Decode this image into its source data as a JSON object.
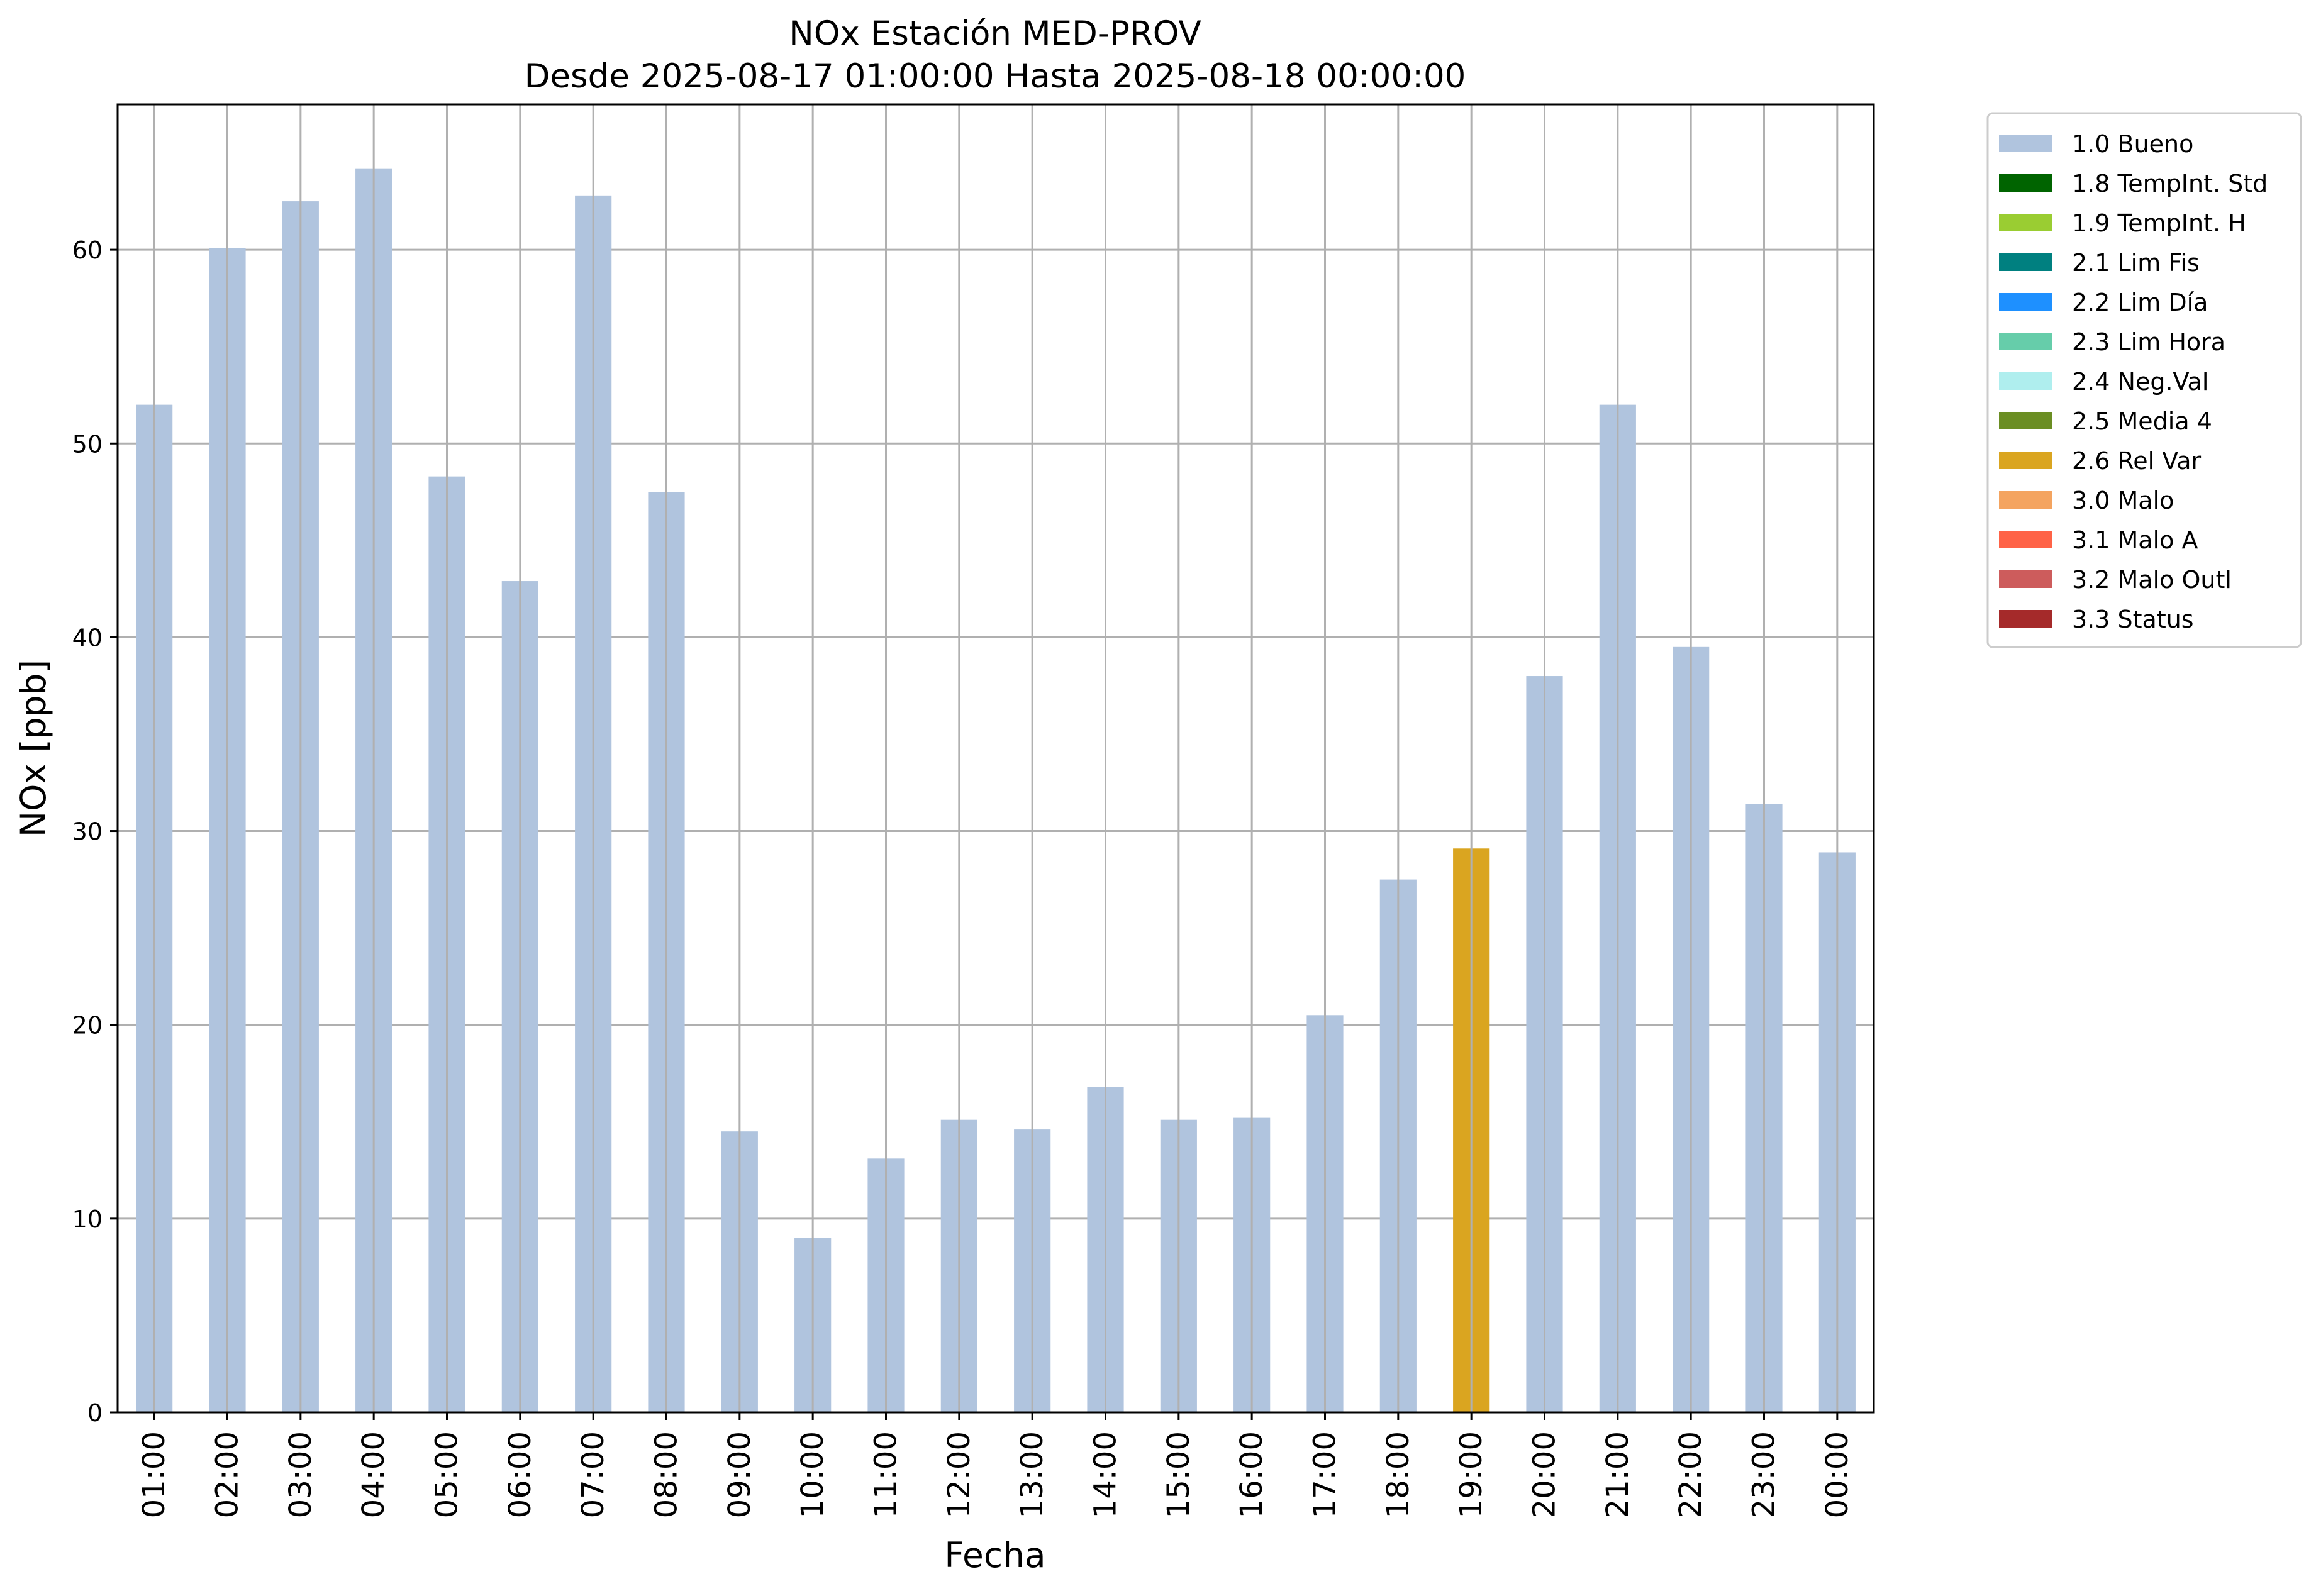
{
  "chart_data": {
    "type": "bar",
    "title": "NOx Estación MED-PROV",
    "subtitle": "Desde 2025-08-17 01:00:00 Hasta 2025-08-18 00:00:00",
    "xlabel": "Fecha",
    "ylabel": "NOx [ppb]",
    "ylim": [
      0,
      67.5
    ],
    "yticks": [
      0,
      10,
      20,
      30,
      40,
      50,
      60
    ],
    "grid": true,
    "legend_position": "outside-top-right",
    "categories": [
      "01:00",
      "02:00",
      "03:00",
      "04:00",
      "05:00",
      "06:00",
      "07:00",
      "08:00",
      "09:00",
      "10:00",
      "11:00",
      "12:00",
      "13:00",
      "14:00",
      "15:00",
      "16:00",
      "17:00",
      "18:00",
      "19:00",
      "20:00",
      "21:00",
      "22:00",
      "23:00",
      "00:00"
    ],
    "values": [
      52.0,
      60.1,
      62.5,
      64.2,
      48.3,
      42.9,
      62.8,
      47.5,
      14.5,
      9.0,
      13.1,
      15.1,
      14.6,
      16.8,
      15.1,
      15.2,
      20.5,
      27.5,
      29.1,
      38.0,
      52.0,
      39.5,
      31.4,
      28.9
    ],
    "flags": [
      "1.0",
      "1.0",
      "1.0",
      "1.0",
      "1.0",
      "1.0",
      "1.0",
      "1.0",
      "1.0",
      "1.0",
      "1.0",
      "1.0",
      "1.0",
      "1.0",
      "1.0",
      "1.0",
      "1.0",
      "1.0",
      "2.6",
      "1.0",
      "1.0",
      "1.0",
      "1.0",
      "1.0"
    ],
    "legend": [
      {
        "key": "1.0",
        "label": "1.0 Bueno",
        "color": "#b0c4de"
      },
      {
        "key": "1.8",
        "label": "1.8 TempInt. Std",
        "color": "#006400"
      },
      {
        "key": "1.9",
        "label": "1.9 TempInt. H",
        "color": "#9acd32"
      },
      {
        "key": "2.1",
        "label": "2.1 Lim Fis",
        "color": "#008080"
      },
      {
        "key": "2.2",
        "label": "2.2 Lim Día",
        "color": "#1e90ff"
      },
      {
        "key": "2.3",
        "label": "2.3 Lim Hora",
        "color": "#66cdaa"
      },
      {
        "key": "2.4",
        "label": "2.4 Neg.Val",
        "color": "#afeeee"
      },
      {
        "key": "2.5",
        "label": "2.5 Media 4",
        "color": "#6b8e23"
      },
      {
        "key": "2.6",
        "label": "2.6 Rel Var",
        "color": "#daa520"
      },
      {
        "key": "3.0",
        "label": "3.0 Malo",
        "color": "#f4a460"
      },
      {
        "key": "3.1",
        "label": "3.1 Malo A",
        "color": "#ff6347"
      },
      {
        "key": "3.2",
        "label": "3.2 Malo Outl",
        "color": "#cd5c5c"
      },
      {
        "key": "3.3",
        "label": "3.3 Status",
        "color": "#a52a2a"
      }
    ],
    "colors": {
      "grid": "#b0b0b0",
      "axis": "#000000",
      "background": "#ffffff"
    }
  }
}
